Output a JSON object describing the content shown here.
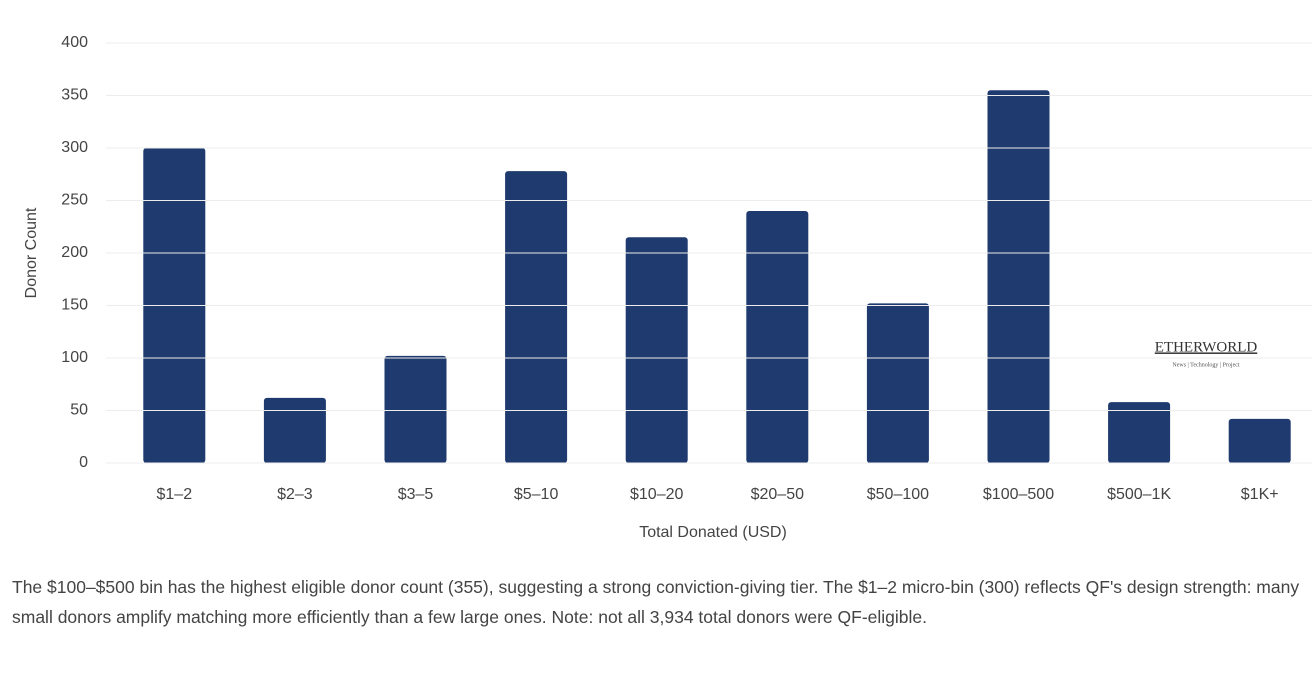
{
  "chart_data": {
    "type": "bar",
    "x_label": "Total Donated (USD)",
    "y_label": "Donor Count",
    "categories": [
      "$1–2",
      "$2–3",
      "$3–5",
      "$5–10",
      "$10–20",
      "$20–50",
      "$50–100",
      "$100–500",
      "$500–1K",
      "$1K+"
    ],
    "values": [
      300,
      62,
      102,
      278,
      215,
      240,
      152,
      355,
      58,
      42
    ],
    "color": "#1e3a6e",
    "ylim": [
      0,
      400
    ],
    "yticks": [
      0,
      50,
      100,
      150,
      200,
      250,
      300,
      350,
      400
    ],
    "grid": true
  },
  "watermark": {
    "title": "ETHERWORLD",
    "subtitle": "News | Technology | Project"
  },
  "caption": "The $100–$500 bin has the highest eligible donor count (355), suggesting a strong conviction-giving tier. The $1–2 micro-bin (300) reflects QF's design strength: many small donors amplify matching more efficiently than a few large ones. Note: not all 3,934 total donors were QF-eligible."
}
